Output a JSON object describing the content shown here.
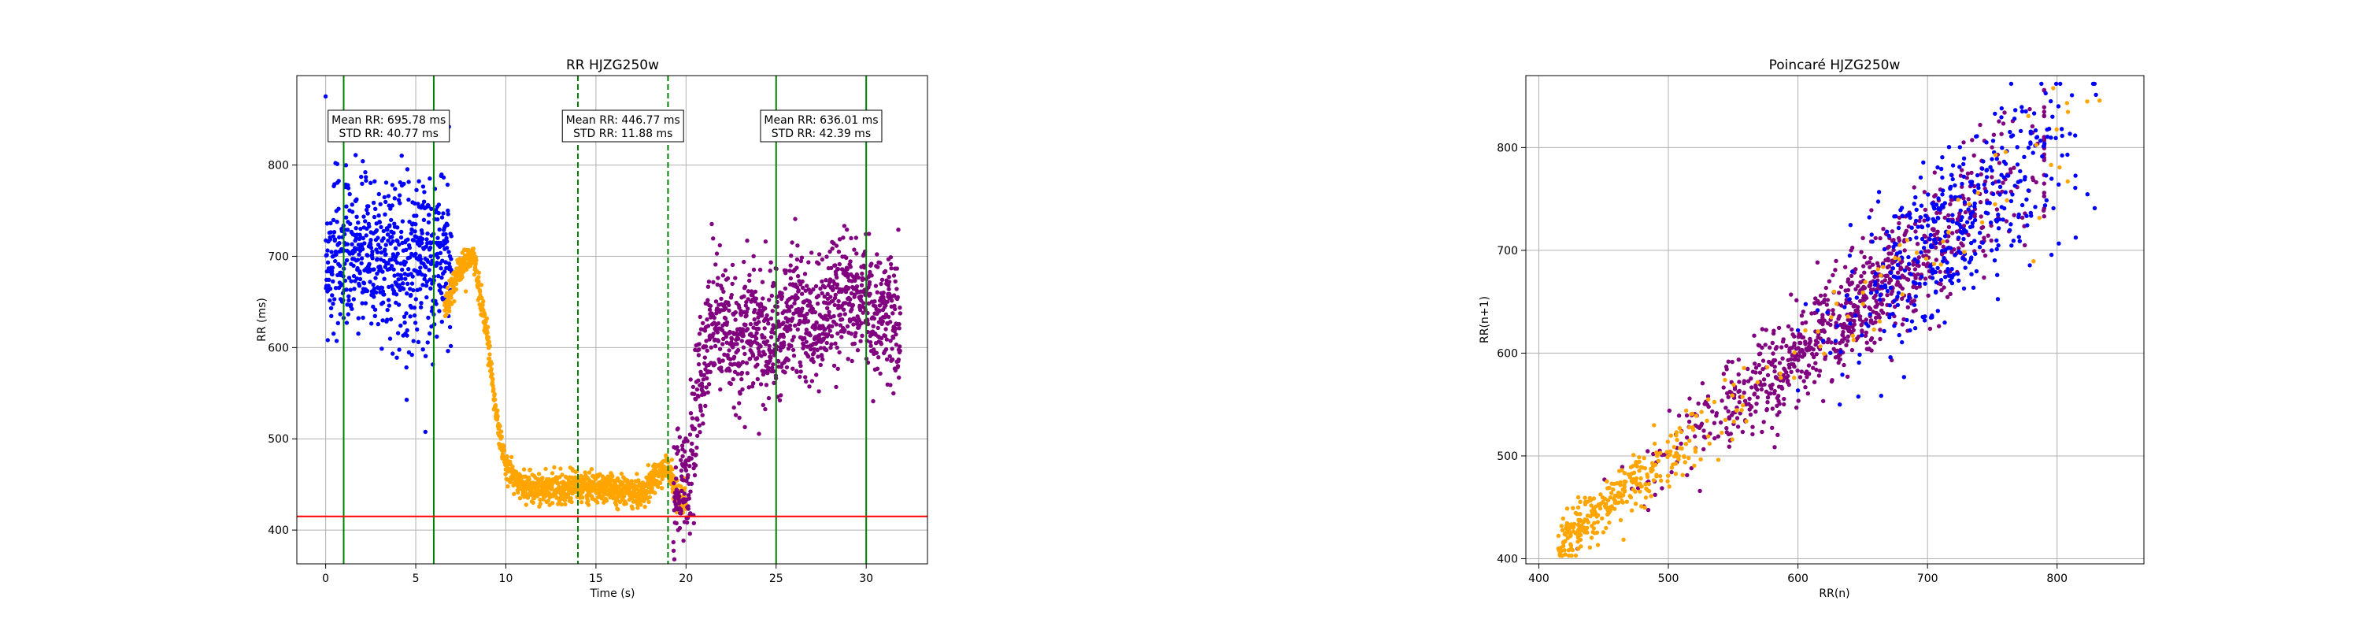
{
  "figure": {
    "background": "#ffffff",
    "dot_colors": {
      "blue": "#0000ff",
      "orange": "#ffa500",
      "purple": "#800080"
    },
    "green_line_color": "#008000",
    "red_line_color": "#ff0000",
    "grid_color": "#b0b0b0"
  },
  "chart_data": [
    {
      "type": "scatter",
      "title": "RR HJZG250w",
      "xlabel": "Time (s)",
      "ylabel": "RR (ms)",
      "xlim": [
        -1.6,
        33.4
      ],
      "ylim": [
        363,
        898
      ],
      "xticks": [
        0,
        5,
        10,
        15,
        20,
        25,
        30
      ],
      "yticks": [
        400,
        500,
        600,
        700,
        800
      ],
      "grid": true,
      "segments": [
        {
          "color": "blue",
          "x_start": 0.0,
          "x_end": 7.0,
          "mean": 700,
          "spread": 45
        },
        {
          "color": "orange",
          "x_start": 6.6,
          "x_end": 20.0,
          "profile": [
            [
              6.6,
              640
            ],
            [
              7.5,
              690
            ],
            [
              8.2,
              700
            ],
            [
              9.0,
              610
            ],
            [
              9.5,
              520
            ],
            [
              10.0,
              470
            ],
            [
              10.8,
              450
            ],
            [
              12.0,
              445
            ],
            [
              14.0,
              448
            ],
            [
              16.0,
              445
            ],
            [
              17.5,
              440
            ],
            [
              18.5,
              460
            ],
            [
              19.0,
              470
            ],
            [
              19.5,
              435
            ],
            [
              20.0,
              432
            ]
          ],
          "spread": 8
        },
        {
          "color": "purple",
          "x_start": 19.3,
          "x_end": 31.9,
          "profile": [
            [
              19.3,
              435
            ],
            [
              20.0,
              440
            ],
            [
              20.5,
              520
            ],
            [
              21.5,
              650
            ],
            [
              22.5,
              600
            ],
            [
              23.5,
              620
            ],
            [
              25.0,
              610
            ],
            [
              26.0,
              650
            ],
            [
              27.0,
              620
            ],
            [
              28.0,
              640
            ],
            [
              29.0,
              660
            ],
            [
              30.0,
              650
            ],
            [
              31.0,
              640
            ],
            [
              31.9,
              630
            ]
          ],
          "spread": 35
        }
      ],
      "vertical_lines": [
        {
          "x": 1.0,
          "color": "green",
          "style": "solid"
        },
        {
          "x": 6.0,
          "color": "green",
          "style": "solid"
        },
        {
          "x": 14.0,
          "color": "green",
          "style": "dashed"
        },
        {
          "x": 19.0,
          "color": "green",
          "style": "dashed"
        },
        {
          "x": 25.0,
          "color": "green",
          "style": "solid"
        },
        {
          "x": 30.0,
          "color": "green",
          "style": "solid"
        }
      ],
      "horizontal_lines": [
        {
          "y": 415,
          "color": "red",
          "style": "solid"
        }
      ],
      "annotations": [
        {
          "x": 3.5,
          "line1": "Mean RR: 695.78 ms",
          "line2": "STD RR: 40.77 ms"
        },
        {
          "x": 16.5,
          "line1": "Mean RR: 446.77 ms",
          "line2": "STD RR: 11.88 ms"
        },
        {
          "x": 27.5,
          "line1": "Mean RR: 636.01 ms",
          "line2": "STD RR: 42.39 ms"
        }
      ]
    },
    {
      "type": "scatter",
      "title": "Poincaré HJZG250w",
      "xlabel": "RR(n)",
      "ylabel": "RR(n+1)",
      "xlim": [
        390,
        867
      ],
      "ylim": [
        395,
        870
      ],
      "xticks": [
        400,
        500,
        600,
        700,
        800
      ],
      "yticks": [
        400,
        500,
        600,
        700,
        800
      ],
      "grid": true,
      "clusters": [
        {
          "color": "purple",
          "x_min": 430,
          "x_max": 790,
          "center": 640,
          "spread": 14
        },
        {
          "color": "blue",
          "x_min": 600,
          "x_max": 830,
          "center": 720,
          "spread": 18
        },
        {
          "color": "orange",
          "x_min": 415,
          "x_max": 845,
          "center": 470,
          "spread": 12
        }
      ]
    }
  ]
}
